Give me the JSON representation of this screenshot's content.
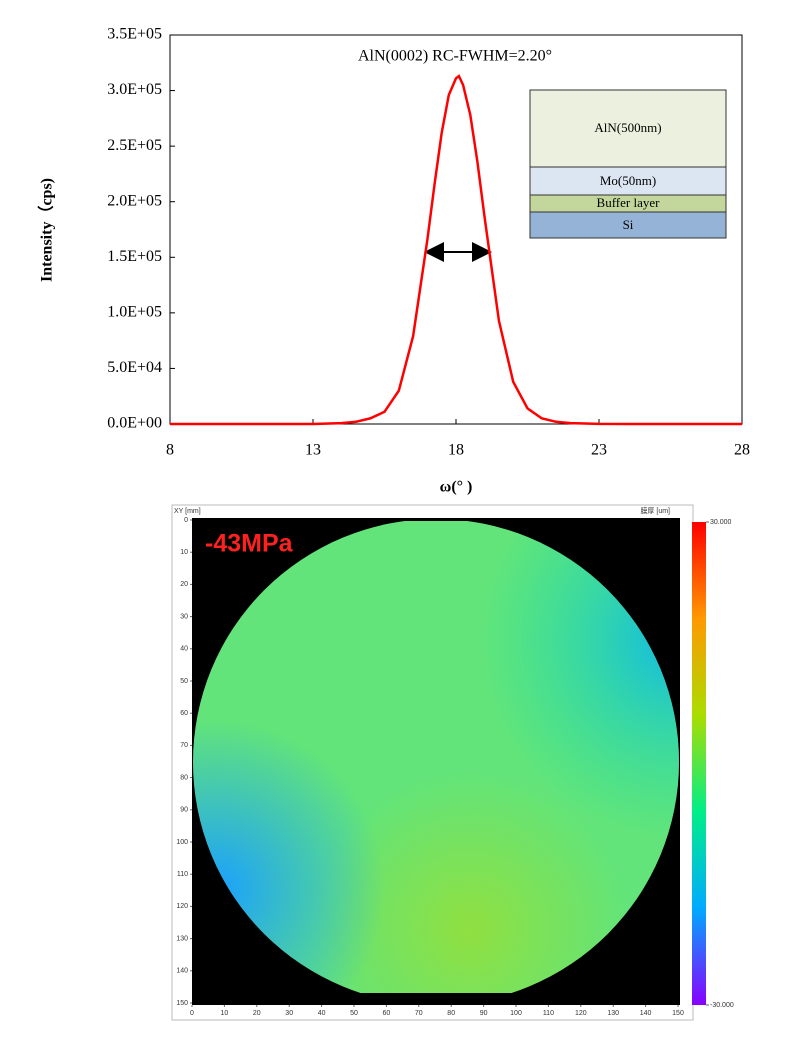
{
  "chart_data": [
    {
      "type": "line",
      "title": "AlN(0002) RC-FWHM=2.20°",
      "x_label": "ω(° )",
      "y_label": "Intensity（cps)",
      "x": [
        8,
        10,
        12,
        13,
        14,
        14.5,
        15,
        15.5,
        16,
        16.5,
        17,
        17.25,
        17.5,
        17.75,
        18,
        18.1,
        18.25,
        18.5,
        18.75,
        19,
        19.5,
        20,
        20.5,
        21,
        21.5,
        22,
        23,
        24,
        26,
        28
      ],
      "series": [
        {
          "color": "#ff0000",
          "values": [
            0,
            0,
            0,
            0,
            800,
            2000,
            5000,
            11000,
            30000,
            79000,
            166000,
            216000,
            262000,
            296000,
            311000,
            313000,
            305000,
            278000,
            236000,
            186000,
            93000,
            38000,
            14000,
            5000,
            2000,
            800,
            100,
            0,
            0,
            0
          ]
        }
      ],
      "xlim": [
        8,
        28
      ],
      "xticks": [
        8,
        13,
        18,
        23,
        28
      ],
      "ylim": [
        0,
        350000
      ],
      "yticks": [
        {
          "value": 0,
          "label": "0.0E+00"
        },
        {
          "value": 50000,
          "label": "5.0E+04"
        },
        {
          "value": 100000,
          "label": "1.0E+05"
        },
        {
          "value": 150000,
          "label": "1.5E+05"
        },
        {
          "value": 200000,
          "label": "2.0E+05"
        },
        {
          "value": 250000,
          "label": "2.5E+05"
        },
        {
          "value": 300000,
          "label": "3.0E+05"
        },
        {
          "value": 350000,
          "label": "3.5E+05"
        }
      ],
      "inset_layers": [
        "AlN(500nm)",
        "Mo(50nm)",
        "Buffer layer",
        "Si"
      ]
    },
    {
      "type": "map",
      "title": "XY [mm]",
      "annotation": "-43MPa",
      "colorbar_label": "膜厚 [um]",
      "xlim": [
        0,
        150
      ],
      "xticks": [
        0,
        10,
        20,
        30,
        40,
        50,
        60,
        70,
        80,
        90,
        100,
        110,
        120,
        130,
        140,
        150
      ],
      "ylim": [
        0,
        150
      ],
      "yticks": [
        0,
        10,
        20,
        30,
        40,
        50,
        60,
        70,
        80,
        90,
        100,
        110,
        120,
        130,
        140,
        150
      ],
      "clim": [
        -30,
        30
      ],
      "cticks": [
        {
          "value": 30,
          "label": "30.000"
        },
        {
          "value": -30,
          "label": "-30.000"
        }
      ],
      "colormap": [
        "#ff0000",
        "#ff9900",
        "#aadd00",
        "#00ee88",
        "#00aaff",
        "#8800ff"
      ]
    }
  ]
}
